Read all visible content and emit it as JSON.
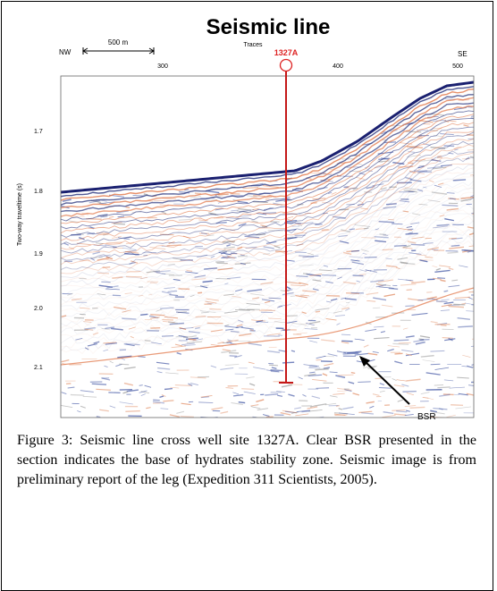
{
  "figure": {
    "title": "Seismic line",
    "left_label": "NW",
    "right_label": "SE",
    "scale_bar": "500 m",
    "x_axis_label": "Traces",
    "site": "1327A",
    "x_ticks": [
      "300",
      "400",
      "500"
    ],
    "y_axis_label": "Two-way traveltime (s)",
    "y_ticks": [
      "1.7",
      "1.8",
      "1.9",
      "2.0",
      "2.1"
    ],
    "annotation": "BSR"
  },
  "caption": "Figure 3: Seismic line cross well site 1327A. Clear BSR presented in the section indicates the base of hydrates stability zone. Seismic image is from preliminary report of the leg (Expedition 311 Scientists, 2005)."
}
